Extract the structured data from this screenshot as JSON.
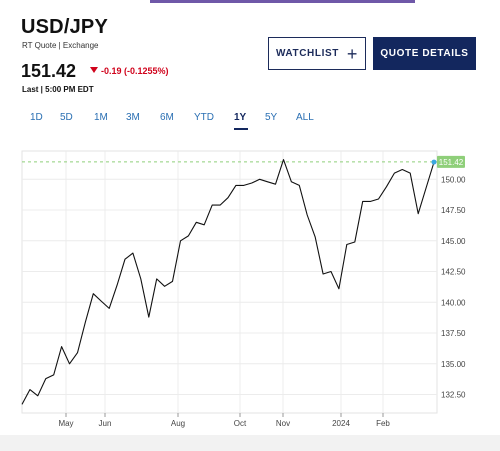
{
  "header": {
    "symbol": "USD/JPY",
    "subtitle": "RT Quote | Exchange",
    "price": "151.42",
    "change": "-0.19 (-0.1255%)",
    "last_time": "Last | 5:00 PM EDT",
    "change_color": "#d0021b"
  },
  "buttons": {
    "watchlist": "WATCHLIST",
    "watchlist_icon": "plus-icon",
    "quote_details": "QUOTE DETAILS"
  },
  "ranges": {
    "items": [
      "1D",
      "5D",
      "1M",
      "3M",
      "6M",
      "YTD",
      "1Y",
      "5Y",
      "ALL"
    ],
    "selected": "1Y"
  },
  "chart_data": {
    "type": "line",
    "title": "",
    "xlabel": "",
    "ylabel": "",
    "ylim": [
      131.0,
      152.3
    ],
    "x_tick_labels": [
      "May",
      "Jun",
      "Aug",
      "Oct",
      "Nov",
      "2024",
      "Feb"
    ],
    "y_tick_labels": [
      "132.50",
      "135.00",
      "137.50",
      "140.00",
      "142.50",
      "145.00",
      "147.50",
      "150.00"
    ],
    "last_value_label": "151.42",
    "reference_line_value": 151.42,
    "series": [
      {
        "values": [
          131.7,
          132.9,
          132.4,
          133.8,
          134.1,
          136.4,
          135.0,
          135.9,
          138.4,
          140.7,
          140.1,
          139.5,
          141.4,
          143.5,
          144.0,
          141.9,
          138.8,
          141.9,
          141.3,
          141.7,
          145.0,
          145.4,
          146.5,
          146.3,
          147.9,
          147.9,
          148.5,
          149.5,
          149.5,
          149.7,
          150.0,
          149.8,
          149.6,
          151.6,
          149.8,
          149.5,
          147.1,
          145.3,
          142.3,
          142.5,
          141.1,
          144.7,
          144.9,
          148.2,
          148.2,
          148.4,
          149.4,
          150.5,
          150.8,
          150.5,
          147.2,
          149.3,
          151.4
        ]
      }
    ]
  }
}
